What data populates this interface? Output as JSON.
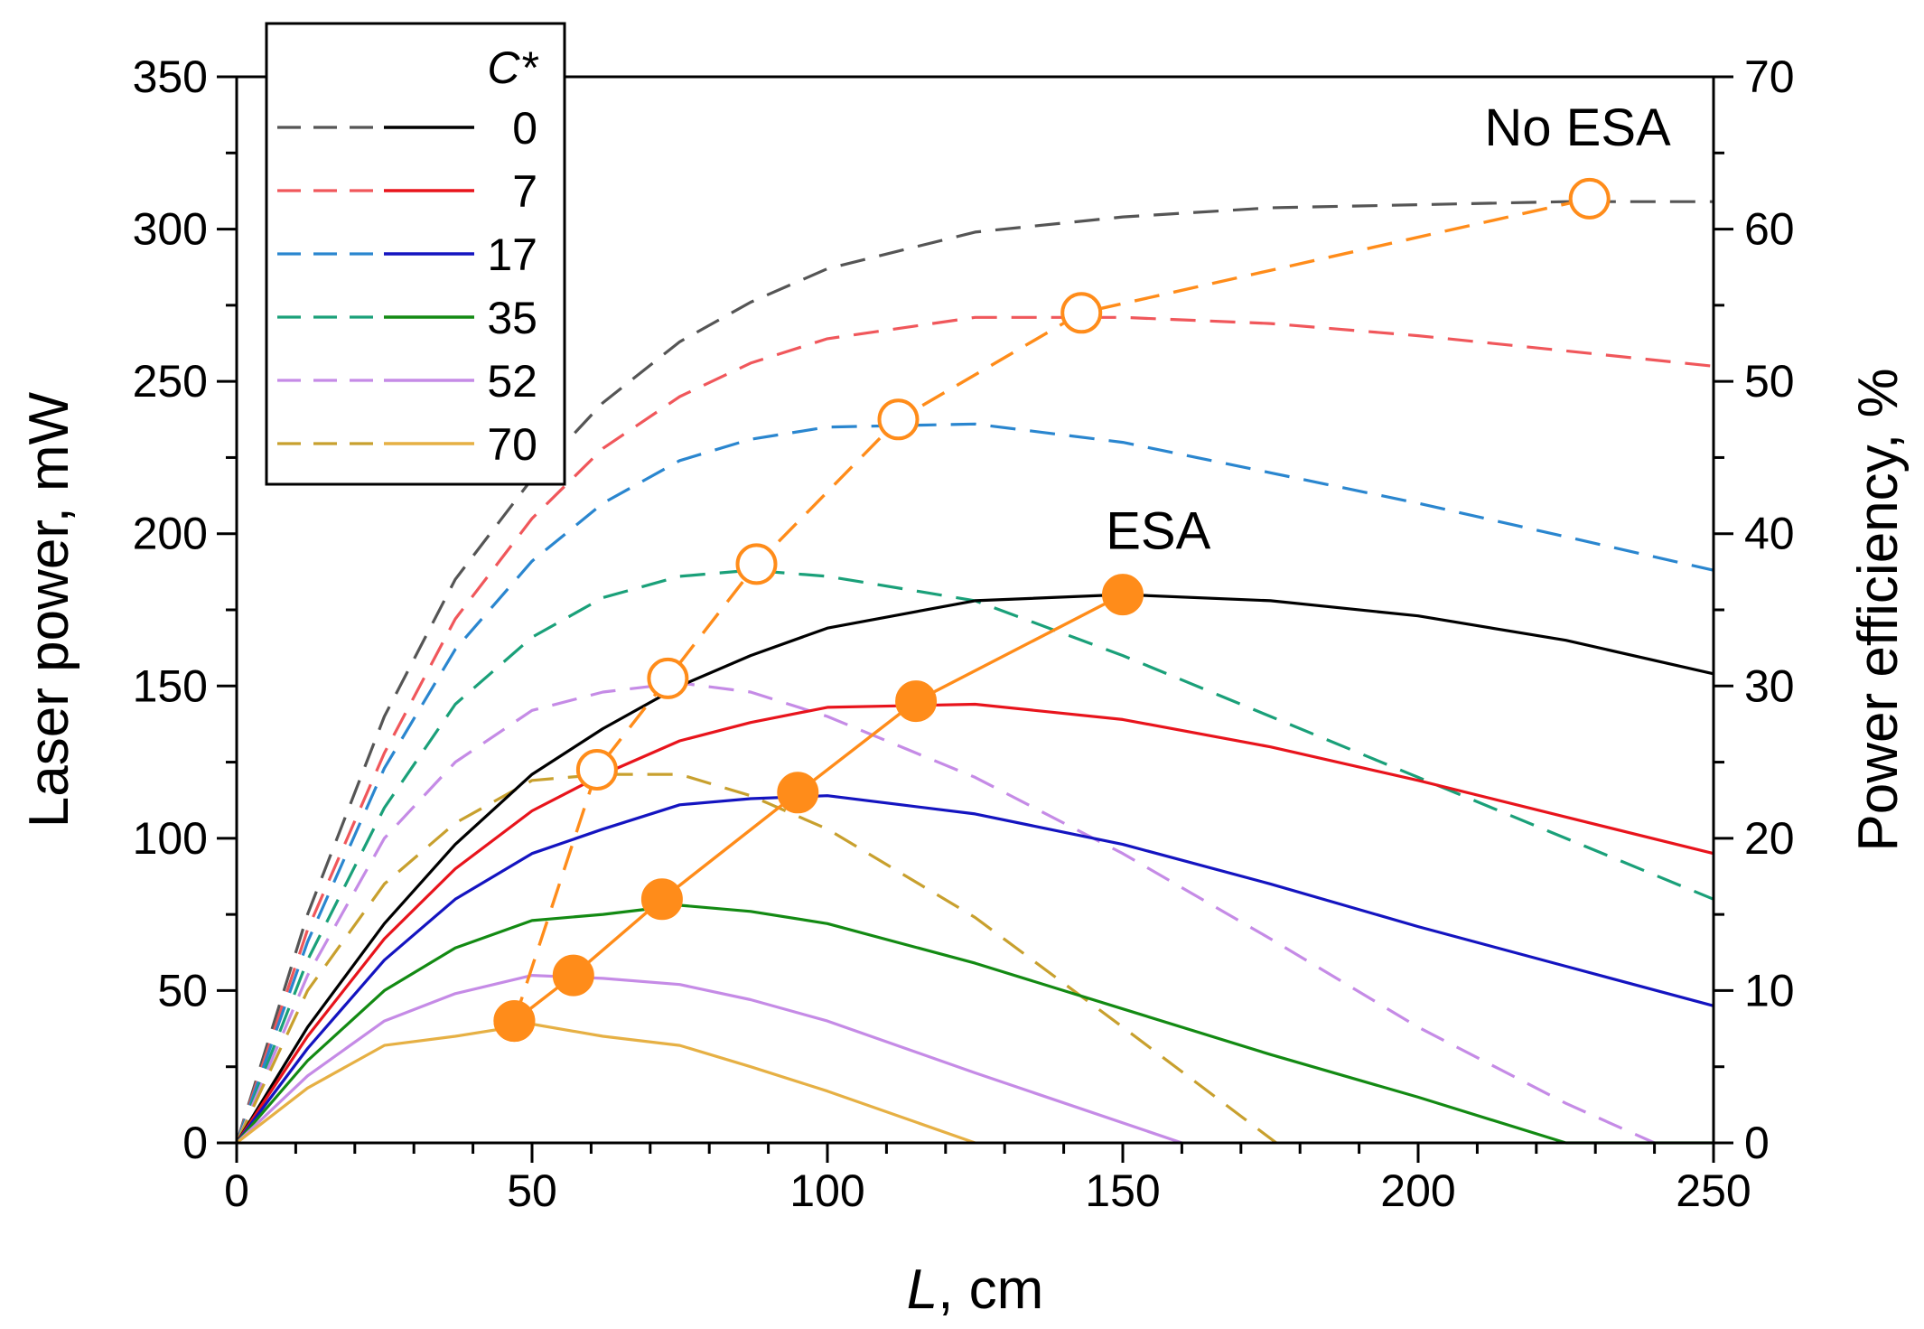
{
  "chart_data": {
    "type": "line",
    "xlabel_var": "L",
    "xlabel_unit": ", cm",
    "ylabel_left": "Laser power, mW",
    "ylabel_right": "Power efficiency, %",
    "xlim": [
      0,
      250
    ],
    "ylim_left": [
      0,
      350
    ],
    "ylim_right": [
      0,
      70
    ],
    "x_ticks": [
      0,
      50,
      100,
      150,
      200,
      250
    ],
    "y_left_ticks": [
      0,
      50,
      100,
      150,
      200,
      250,
      300,
      350
    ],
    "y_right_ticks": [
      0,
      10,
      20,
      30,
      40,
      50,
      60,
      70
    ],
    "grid": false,
    "legend": {
      "title": "C*",
      "placement": "top-left",
      "entries": [
        {
          "label": "0",
          "dashed_color": "#555555",
          "solid_color": "#000000"
        },
        {
          "label": "7",
          "dashed_color": "#f0575b",
          "solid_color": "#e8141c"
        },
        {
          "label": "17",
          "dashed_color": "#2a86cf",
          "solid_color": "#1414c0"
        },
        {
          "label": "35",
          "dashed_color": "#1aa079",
          "solid_color": "#138a13"
        },
        {
          "label": "52",
          "dashed_color": "#c58be6",
          "solid_color": "#c58be6"
        },
        {
          "label": "70",
          "dashed_color": "#c8a02e",
          "solid_color": "#e6b044"
        }
      ]
    },
    "series": [
      {
        "group": "No ESA",
        "c": "0",
        "style": "dashed",
        "color": "#555555",
        "x": [
          0,
          12,
          25,
          37,
          50,
          62,
          75,
          87,
          100,
          125,
          150,
          175,
          200,
          225,
          250
        ],
        "y": [
          0,
          75,
          140,
          185,
          218,
          243,
          263,
          276,
          287,
          299,
          304,
          307,
          308,
          309,
          309
        ]
      },
      {
        "group": "No ESA",
        "c": "7",
        "style": "dashed",
        "color": "#f0575b",
        "x": [
          0,
          12,
          25,
          37,
          50,
          62,
          75,
          87,
          100,
          125,
          150,
          175,
          200,
          225,
          250
        ],
        "y": [
          0,
          70,
          128,
          172,
          205,
          228,
          245,
          256,
          264,
          271,
          271,
          269,
          265,
          260,
          255
        ]
      },
      {
        "group": "No ESA",
        "c": "17",
        "style": "dashed",
        "color": "#2a86cf",
        "x": [
          0,
          12,
          25,
          37,
          50,
          62,
          75,
          87,
          100,
          125,
          150,
          175,
          200,
          225,
          250
        ],
        "y": [
          0,
          66,
          123,
          162,
          191,
          210,
          224,
          231,
          235,
          236,
          230,
          220,
          210,
          199,
          188
        ]
      },
      {
        "group": "No ESA",
        "c": "35",
        "style": "dashed",
        "color": "#1aa079",
        "x": [
          0,
          12,
          25,
          37,
          50,
          62,
          75,
          87,
          100,
          125,
          150,
          175,
          200,
          225,
          250
        ],
        "y": [
          0,
          60,
          110,
          144,
          166,
          179,
          186,
          188,
          186,
          178,
          160,
          140,
          120,
          100,
          80
        ]
      },
      {
        "group": "No ESA",
        "c": "52",
        "style": "dashed",
        "color": "#c58be6",
        "x": [
          0,
          12,
          25,
          37,
          50,
          62,
          75,
          87,
          100,
          125,
          150,
          175,
          200,
          225,
          240
        ],
        "y": [
          0,
          55,
          100,
          125,
          142,
          148,
          151,
          148,
          140,
          120,
          95,
          67,
          38,
          13,
          0
        ]
      },
      {
        "group": "No ESA",
        "c": "70",
        "style": "dashed",
        "color": "#c8a02e",
        "x": [
          0,
          12,
          25,
          37,
          50,
          62,
          75,
          87,
          100,
          125,
          150,
          176
        ],
        "y": [
          0,
          50,
          85,
          105,
          119,
          121,
          121,
          114,
          103,
          74,
          38,
          0
        ]
      },
      {
        "group": "ESA",
        "c": "0",
        "style": "solid",
        "color": "#000000",
        "x": [
          0,
          12,
          25,
          37,
          50,
          62,
          75,
          87,
          100,
          125,
          150,
          175,
          200,
          225,
          250
        ],
        "y": [
          0,
          38,
          72,
          98,
          121,
          136,
          150,
          160,
          169,
          178,
          180,
          178,
          173,
          165,
          154
        ]
      },
      {
        "group": "ESA",
        "c": "7",
        "style": "solid",
        "color": "#e8141c",
        "x": [
          0,
          12,
          25,
          37,
          50,
          62,
          75,
          87,
          100,
          125,
          150,
          175,
          200,
          225,
          250
        ],
        "y": [
          0,
          35,
          67,
          90,
          109,
          121,
          132,
          138,
          143,
          144,
          139,
          130,
          119,
          107,
          95
        ]
      },
      {
        "group": "ESA",
        "c": "17",
        "style": "solid",
        "color": "#1414c0",
        "x": [
          0,
          12,
          25,
          37,
          50,
          62,
          75,
          87,
          100,
          125,
          150,
          175,
          200,
          225,
          250
        ],
        "y": [
          0,
          31,
          60,
          80,
          95,
          103,
          111,
          113,
          114,
          108,
          98,
          85,
          71,
          58,
          45
        ]
      },
      {
        "group": "ESA",
        "c": "35",
        "style": "solid",
        "color": "#138a13",
        "x": [
          0,
          12,
          25,
          37,
          50,
          62,
          75,
          87,
          100,
          125,
          150,
          175,
          200,
          225,
          250
        ],
        "y": [
          0,
          27,
          50,
          64,
          73,
          75,
          78,
          76,
          72,
          59,
          44,
          29,
          15,
          0,
          0
        ]
      },
      {
        "group": "ESA",
        "c": "52",
        "style": "solid",
        "color": "#c58be6",
        "x": [
          0,
          12,
          25,
          37,
          50,
          62,
          75,
          87,
          100,
          125,
          160
        ],
        "y": [
          0,
          22,
          40,
          49,
          55,
          54,
          52,
          47,
          40,
          23,
          0
        ]
      },
      {
        "group": "ESA",
        "c": "70",
        "style": "solid",
        "color": "#e6b044",
        "x": [
          0,
          12,
          25,
          37,
          50,
          62,
          75,
          87,
          100,
          125
        ],
        "y": [
          0,
          18,
          32,
          35,
          39,
          35,
          32,
          25,
          17,
          0
        ]
      }
    ],
    "efficiency_series": [
      {
        "name": "No ESA",
        "axis": "right",
        "style": "dashed",
        "marker": "open-circle",
        "color": "#ff8c1a",
        "x": [
          47,
          61,
          73,
          88,
          112,
          143,
          229
        ],
        "y": [
          8,
          24.5,
          30.5,
          38,
          47.5,
          54.5,
          62
        ]
      },
      {
        "name": "ESA",
        "axis": "right",
        "style": "solid",
        "marker": "filled-circle",
        "color": "#ff8c1a",
        "x": [
          47,
          57,
          72,
          95,
          115,
          150
        ],
        "y": [
          8,
          11,
          16,
          23,
          29,
          36
        ]
      }
    ],
    "annotations": [
      {
        "text": "No ESA",
        "x": 227,
        "y_right": 65.5
      },
      {
        "text": "ESA",
        "x": 156,
        "y_right": 39
      }
    ]
  }
}
